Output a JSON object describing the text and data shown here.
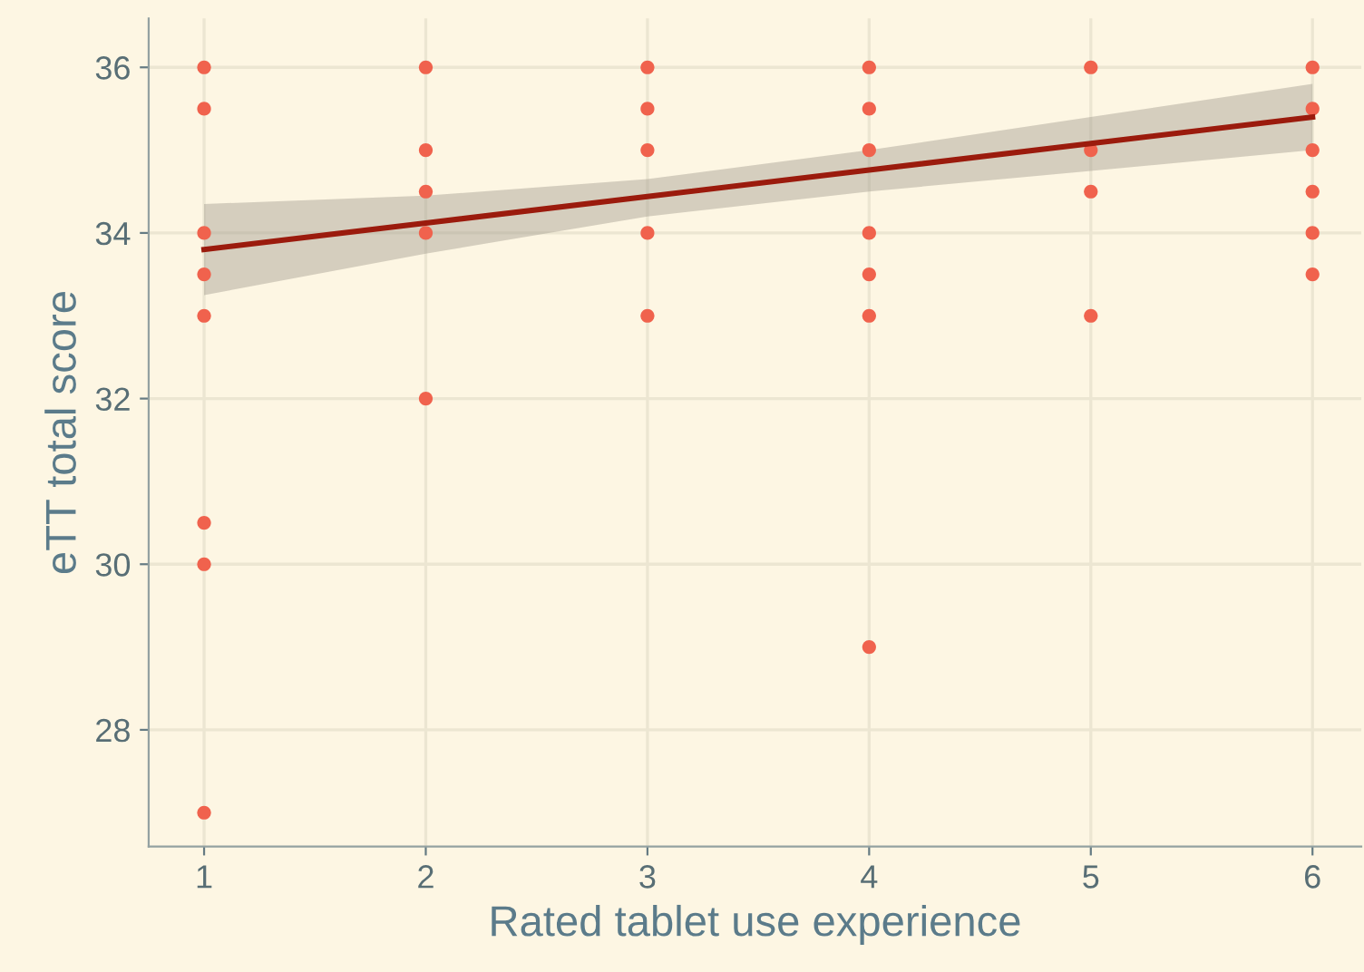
{
  "chart_data": {
    "type": "scatter",
    "xlabel": "Rated tablet use experience",
    "ylabel": "eTT total score",
    "xlim": [
      0.75,
      6.22
    ],
    "ylim": [
      26.59,
      36.59
    ],
    "xticks": [
      1,
      2,
      3,
      4,
      5,
      6
    ],
    "yticks": [
      28,
      30,
      32,
      34,
      36
    ],
    "grid": true,
    "legend": false,
    "series": [
      {
        "color": "#f0624d",
        "x": [
          1,
          1,
          1,
          1,
          1,
          1,
          1,
          1,
          2,
          2,
          2,
          2,
          2,
          3,
          3,
          3,
          3,
          3,
          4,
          4,
          4,
          4,
          4,
          4,
          4,
          5,
          5,
          5,
          5,
          6,
          6,
          6,
          6,
          6,
          6
        ],
        "values": [
          36,
          35.5,
          34,
          33.5,
          33,
          30.5,
          30,
          27,
          36,
          35,
          34.5,
          34,
          32,
          36,
          35.5,
          35,
          34,
          33,
          36,
          35.5,
          35,
          34,
          33.5,
          33,
          29,
          36,
          35,
          34.5,
          33,
          36,
          35.5,
          35,
          34.5,
          34,
          33.5
        ]
      },
      {
        "type": "line",
        "color": "#9b1b0d",
        "x": [
          1,
          2,
          3,
          4,
          5,
          6
        ],
        "values": [
          33.8,
          34.12,
          34.44,
          34.76,
          35.08,
          35.4
        ],
        "lower": [
          33.25,
          33.75,
          34.2,
          34.5,
          34.75,
          35.0
        ],
        "upper": [
          34.35,
          34.45,
          34.65,
          35.0,
          35.4,
          35.8
        ]
      }
    ]
  }
}
